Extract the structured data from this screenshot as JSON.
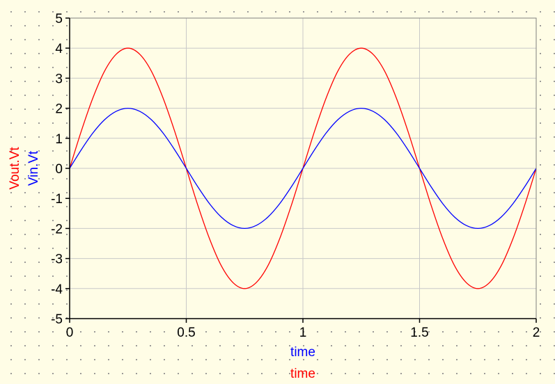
{
  "chart_data": {
    "type": "line",
    "xlabel": "time",
    "xlabel_2": "time",
    "ylabel": "Vout.Vt",
    "ylabel_2": "Vin.Vt",
    "xlim": [
      0,
      2
    ],
    "ylim": [
      -5,
      5
    ],
    "xticks": [
      "0",
      "0.5",
      "1",
      "1.5",
      "2"
    ],
    "yticks": [
      "5",
      "4",
      "3",
      "2",
      "1",
      "0",
      "-1",
      "-2",
      "-3",
      "-4",
      "-5"
    ],
    "grid": true,
    "series": [
      {
        "name": "Vout.Vt",
        "color": "#ff0000",
        "x": [
          0,
          0.05,
          0.1,
          0.15,
          0.2,
          0.25,
          0.3,
          0.35,
          0.4,
          0.45,
          0.5,
          0.55,
          0.6,
          0.65,
          0.7,
          0.75,
          0.8,
          0.85,
          0.9,
          0.95,
          1.0,
          1.05,
          1.1,
          1.15,
          1.2,
          1.25,
          1.3,
          1.35,
          1.4,
          1.45,
          1.5,
          1.55,
          1.6,
          1.65,
          1.7,
          1.75,
          1.8,
          1.85,
          1.9,
          1.95,
          2.0
        ],
        "y": [
          0,
          1.24,
          2.35,
          3.24,
          3.8,
          4.0,
          3.8,
          3.24,
          2.35,
          1.24,
          0,
          -1.24,
          -2.35,
          -3.24,
          -3.8,
          -4.0,
          -3.8,
          -3.24,
          -2.35,
          -1.24,
          0,
          1.24,
          2.35,
          3.24,
          3.8,
          4.0,
          3.8,
          3.24,
          2.35,
          1.24,
          0,
          -1.24,
          -2.35,
          -3.24,
          -3.8,
          -4.0,
          -3.8,
          -3.24,
          -2.35,
          -1.24,
          0
        ]
      },
      {
        "name": "Vin.Vt",
        "color": "#0000ff",
        "x": [
          0,
          0.05,
          0.1,
          0.15,
          0.2,
          0.25,
          0.3,
          0.35,
          0.4,
          0.45,
          0.5,
          0.55,
          0.6,
          0.65,
          0.7,
          0.75,
          0.8,
          0.85,
          0.9,
          0.95,
          1.0,
          1.05,
          1.1,
          1.15,
          1.2,
          1.25,
          1.3,
          1.35,
          1.4,
          1.45,
          1.5,
          1.55,
          1.6,
          1.65,
          1.7,
          1.75,
          1.8,
          1.85,
          1.9,
          1.95,
          2.0
        ],
        "y": [
          0,
          0.62,
          1.18,
          1.62,
          1.9,
          2.0,
          1.9,
          1.62,
          1.18,
          0.62,
          0,
          -0.62,
          -1.18,
          -1.62,
          -1.9,
          -2.0,
          -1.9,
          -1.62,
          -1.18,
          -0.62,
          0,
          0.62,
          1.18,
          1.62,
          1.9,
          2.0,
          1.9,
          1.62,
          1.18,
          0.62,
          0,
          -0.62,
          -1.18,
          -1.62,
          -1.9,
          -2.0,
          -1.9,
          -1.62,
          -1.18,
          -0.62,
          0
        ]
      }
    ]
  },
  "colors": {
    "background": "#fffde6",
    "grid": "#c8c8c8",
    "axis": "#000000",
    "vout": "#ff0000",
    "vin": "#0000ff"
  }
}
